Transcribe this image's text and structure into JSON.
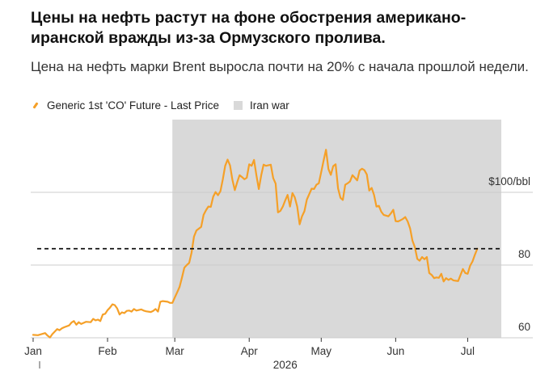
{
  "title": "Цены на нефть растут на фоне обострения американо-иранской вражды из-за Ормузского пролива.",
  "subtitle": "Цена на нефть марки Brent выросла почти на 20% с начала прошлой недели.",
  "legend": {
    "series_label": "Generic 1st 'CO' Future - Last Price",
    "band_label": "Iran war"
  },
  "colors": {
    "line": "#F5A028",
    "band": "#D9D9D9",
    "dashed": "#111111",
    "grid": "#CCCCCC"
  },
  "chart_data": {
    "type": "line",
    "title": "Цены на нефть растут на фоне обострения американо-иранской вражды из-за Ормузского пролива.",
    "xlabel": "2026",
    "ylabel": "",
    "ylim": [
      60,
      120
    ],
    "y_ticks": [
      {
        "value": 100,
        "label": "$100/bbl"
      },
      {
        "value": 80,
        "label": "80"
      },
      {
        "value": 60,
        "label": "60"
      }
    ],
    "x_ticks": [
      {
        "day": 1,
        "label": "Jan"
      },
      {
        "day": 32,
        "label": "Feb"
      },
      {
        "day": 60,
        "label": "Mar"
      },
      {
        "day": 91,
        "label": "Apr"
      },
      {
        "day": 121,
        "label": "May"
      },
      {
        "day": 152,
        "label": "Jun"
      },
      {
        "day": 182,
        "label": "Jul"
      }
    ],
    "x_axis_year": "2026",
    "xlim_days": [
      0,
      196
    ],
    "reference_line": {
      "value": 84.5,
      "style": "dashed"
    },
    "shaded_region": {
      "label": "Iran war",
      "start_day": 59,
      "end_day": 196
    },
    "series": [
      {
        "name": "Generic 1st 'CO' Future - Last Price",
        "points": [
          [
            1,
            60.8
          ],
          [
            3,
            60.7
          ],
          [
            5,
            61.1
          ],
          [
            6,
            61.3
          ],
          [
            7,
            60.6
          ],
          [
            8,
            60.1
          ],
          [
            9,
            61.0
          ],
          [
            11,
            62.4
          ],
          [
            12,
            62.1
          ],
          [
            13,
            62.6
          ],
          [
            14,
            62.9
          ],
          [
            16,
            63.4
          ],
          [
            17,
            64.2
          ],
          [
            18,
            64.6
          ],
          [
            19,
            63.6
          ],
          [
            20,
            64.3
          ],
          [
            21,
            63.8
          ],
          [
            23,
            64.4
          ],
          [
            25,
            64.3
          ],
          [
            26,
            65.2
          ],
          [
            27,
            64.8
          ],
          [
            28,
            65.0
          ],
          [
            29,
            64.6
          ],
          [
            30,
            66.4
          ],
          [
            31,
            66.6
          ],
          [
            32,
            67.6
          ],
          [
            33,
            68.3
          ],
          [
            34,
            69.2
          ],
          [
            35,
            69.0
          ],
          [
            36,
            68.1
          ],
          [
            37,
            66.4
          ],
          [
            38,
            67.0
          ],
          [
            39,
            66.8
          ],
          [
            40,
            67.4
          ],
          [
            41,
            67.5
          ],
          [
            42,
            67.2
          ],
          [
            43,
            67.9
          ],
          [
            44,
            67.5
          ],
          [
            46,
            67.8
          ],
          [
            47,
            67.5
          ],
          [
            48,
            67.3
          ],
          [
            50,
            67.1
          ],
          [
            51,
            67.4
          ],
          [
            52,
            67.9
          ],
          [
            53,
            67.2
          ],
          [
            54,
            69.9
          ],
          [
            55,
            70.1
          ],
          [
            56,
            70.0
          ],
          [
            57,
            69.9
          ],
          [
            58,
            69.6
          ],
          [
            59,
            69.6
          ],
          [
            60,
            71.1
          ],
          [
            61,
            72.5
          ],
          [
            62,
            74.0
          ],
          [
            63,
            76.6
          ],
          [
            64,
            79.3
          ],
          [
            65,
            80.0
          ],
          [
            66,
            80.6
          ],
          [
            67,
            83.4
          ],
          [
            68,
            87.8
          ],
          [
            69,
            89.5
          ],
          [
            71,
            90.5
          ],
          [
            72,
            93.8
          ],
          [
            73,
            95.1
          ],
          [
            74,
            96.1
          ],
          [
            75,
            96.0
          ],
          [
            76,
            98.8
          ],
          [
            77,
            100.1
          ],
          [
            78,
            99.2
          ],
          [
            79,
            100.3
          ],
          [
            80,
            103.6
          ],
          [
            81,
            107.3
          ],
          [
            82,
            109.0
          ],
          [
            83,
            107.4
          ],
          [
            84,
            103.5
          ],
          [
            85,
            100.6
          ],
          [
            86,
            102.8
          ],
          [
            87,
            104.7
          ],
          [
            88,
            104.2
          ],
          [
            89,
            103.6
          ],
          [
            90,
            104.0
          ],
          [
            91,
            107.7
          ],
          [
            92,
            107.3
          ],
          [
            93,
            108.9
          ],
          [
            94,
            104.7
          ],
          [
            95,
            100.9
          ],
          [
            96,
            104.7
          ],
          [
            97,
            107.6
          ],
          [
            98,
            107.3
          ],
          [
            100,
            107.6
          ],
          [
            101,
            103.9
          ],
          [
            102,
            102.4
          ],
          [
            103,
            94.5
          ],
          [
            104,
            94.9
          ],
          [
            105,
            96.1
          ],
          [
            106,
            97.8
          ],
          [
            107,
            99.3
          ],
          [
            108,
            96.1
          ],
          [
            109,
            99.8
          ],
          [
            110,
            98.6
          ],
          [
            111,
            96.1
          ],
          [
            112,
            91.2
          ],
          [
            113,
            93.4
          ],
          [
            114,
            94.8
          ],
          [
            115,
            98.0
          ],
          [
            117,
            101.0
          ],
          [
            118,
            100.9
          ],
          [
            119,
            102.1
          ],
          [
            120,
            102.5
          ],
          [
            121,
            105.6
          ],
          [
            122,
            108.8
          ],
          [
            123,
            111.7
          ],
          [
            124,
            106.4
          ],
          [
            125,
            104.8
          ],
          [
            126,
            107.2
          ],
          [
            127,
            107.7
          ],
          [
            128,
            101.1
          ],
          [
            129,
            98.5
          ],
          [
            130,
            97.9
          ],
          [
            131,
            102.1
          ],
          [
            132,
            102.5
          ],
          [
            133,
            103.0
          ],
          [
            134,
            104.7
          ],
          [
            135,
            104.0
          ],
          [
            136,
            103.3
          ],
          [
            137,
            106.0
          ],
          [
            138,
            106.5
          ],
          [
            139,
            106.1
          ],
          [
            140,
            104.9
          ],
          [
            141,
            100.5
          ],
          [
            142,
            101.2
          ],
          [
            143,
            99.3
          ],
          [
            144,
            96.1
          ],
          [
            145,
            96.3
          ],
          [
            146,
            94.7
          ],
          [
            147,
            93.8
          ],
          [
            148,
            93.6
          ],
          [
            149,
            93.4
          ],
          [
            150,
            94.2
          ],
          [
            151,
            95.2
          ],
          [
            152,
            92.1
          ],
          [
            153,
            92.0
          ],
          [
            154,
            92.3
          ],
          [
            155,
            92.7
          ],
          [
            156,
            93.2
          ],
          [
            157,
            92.0
          ],
          [
            158,
            90.1
          ],
          [
            159,
            86.7
          ],
          [
            160,
            84.9
          ],
          [
            161,
            81.7
          ],
          [
            162,
            81.2
          ],
          [
            163,
            82.2
          ],
          [
            164,
            81.6
          ],
          [
            165,
            82.2
          ],
          [
            166,
            77.8
          ],
          [
            167,
            77.3
          ],
          [
            168,
            76.4
          ],
          [
            169,
            76.6
          ],
          [
            170,
            76.5
          ],
          [
            171,
            77.6
          ],
          [
            172,
            75.5
          ],
          [
            173,
            76.4
          ],
          [
            174,
            75.9
          ],
          [
            175,
            76.3
          ],
          [
            176,
            75.8
          ],
          [
            177,
            75.7
          ],
          [
            178,
            75.6
          ],
          [
            180,
            78.9
          ],
          [
            181,
            77.8
          ],
          [
            182,
            77.6
          ],
          [
            183,
            79.8
          ],
          [
            184,
            81.0
          ],
          [
            185,
            82.8
          ],
          [
            186,
            84.5
          ]
        ]
      }
    ]
  }
}
